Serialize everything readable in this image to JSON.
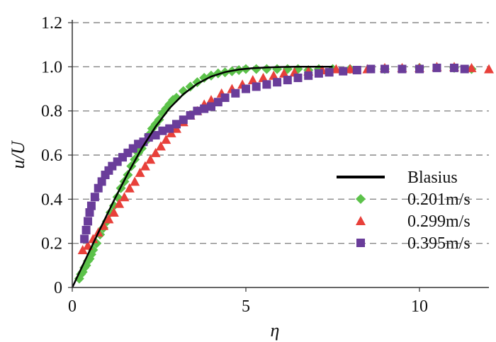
{
  "chart_data": {
    "type": "scatter",
    "xlabel": "η",
    "ylabel": "u/U",
    "xlim": [
      0,
      12
    ],
    "ylim": [
      0,
      1.2
    ],
    "xticks": [
      "0",
      "5",
      "10"
    ],
    "yticks": [
      "0",
      "0.2",
      "0.4",
      "0.6",
      "0.8",
      "1.0",
      "1.2"
    ],
    "grid": "horizontal dashed",
    "legend_position": "lower-right",
    "series": [
      {
        "name": "Blasius",
        "kind": "line",
        "color": "#000000",
        "points": [
          [
            0,
            0
          ],
          [
            0.4,
            0.133
          ],
          [
            0.8,
            0.265
          ],
          [
            1.2,
            0.394
          ],
          [
            1.6,
            0.517
          ],
          [
            2.0,
            0.63
          ],
          [
            2.4,
            0.729
          ],
          [
            2.8,
            0.812
          ],
          [
            3.2,
            0.876
          ],
          [
            3.6,
            0.923
          ],
          [
            4.0,
            0.956
          ],
          [
            4.4,
            0.976
          ],
          [
            4.8,
            0.988
          ],
          [
            5.2,
            0.994
          ],
          [
            5.6,
            0.997
          ],
          [
            6.0,
            0.999
          ],
          [
            6.5,
            1.0
          ],
          [
            7.5,
            1.0
          ]
        ]
      },
      {
        "name": "0.201m/s",
        "kind": "marker",
        "marker": "diamond",
        "color": "#5cc24a",
        "points": [
          [
            0.2,
            0.04
          ],
          [
            0.25,
            0.06
          ],
          [
            0.3,
            0.07
          ],
          [
            0.35,
            0.09
          ],
          [
            0.4,
            0.1
          ],
          [
            0.45,
            0.12
          ],
          [
            0.5,
            0.13
          ],
          [
            0.55,
            0.15
          ],
          [
            0.6,
            0.17
          ],
          [
            0.7,
            0.2
          ],
          [
            0.8,
            0.24
          ],
          [
            0.9,
            0.27
          ],
          [
            1.0,
            0.3
          ],
          [
            1.1,
            0.34
          ],
          [
            1.2,
            0.37
          ],
          [
            1.3,
            0.41
          ],
          [
            1.4,
            0.45
          ],
          [
            1.5,
            0.48
          ],
          [
            1.6,
            0.51
          ],
          [
            1.7,
            0.55
          ],
          [
            1.8,
            0.58
          ],
          [
            1.9,
            0.61
          ],
          [
            2.0,
            0.63
          ],
          [
            2.1,
            0.66
          ],
          [
            2.2,
            0.69
          ],
          [
            2.3,
            0.72
          ],
          [
            2.4,
            0.74
          ],
          [
            2.5,
            0.76
          ],
          [
            2.6,
            0.79
          ],
          [
            2.7,
            0.81
          ],
          [
            2.8,
            0.83
          ],
          [
            2.9,
            0.85
          ],
          [
            3.0,
            0.86
          ],
          [
            3.2,
            0.89
          ],
          [
            3.4,
            0.91
          ],
          [
            3.6,
            0.93
          ],
          [
            3.8,
            0.95
          ],
          [
            4.0,
            0.96
          ],
          [
            4.2,
            0.97
          ],
          [
            4.4,
            0.975
          ],
          [
            4.6,
            0.98
          ],
          [
            4.8,
            0.985
          ],
          [
            5.0,
            0.99
          ],
          [
            5.3,
            0.99
          ],
          [
            5.6,
            0.99
          ],
          [
            5.9,
            0.99
          ],
          [
            6.2,
            0.99
          ],
          [
            6.5,
            0.99
          ],
          [
            6.8,
            0.985
          ],
          [
            7.1,
            0.99
          ],
          [
            7.5,
            0.99
          ],
          [
            8.0,
            0.99
          ],
          [
            9.0,
            0.99
          ],
          [
            10.0,
            0.995
          ],
          [
            11.0,
            0.995
          ],
          [
            11.5,
            0.99
          ]
        ]
      },
      {
        "name": "0.299m/s",
        "kind": "marker",
        "marker": "triangle",
        "color": "#e8403a",
        "points": [
          [
            0.3,
            0.17
          ],
          [
            0.45,
            0.19
          ],
          [
            0.6,
            0.22
          ],
          [
            0.75,
            0.25
          ],
          [
            0.9,
            0.28
          ],
          [
            1.05,
            0.31
          ],
          [
            1.2,
            0.34
          ],
          [
            1.35,
            0.38
          ],
          [
            1.5,
            0.41
          ],
          [
            1.65,
            0.45
          ],
          [
            1.8,
            0.48
          ],
          [
            1.95,
            0.52
          ],
          [
            2.1,
            0.55
          ],
          [
            2.25,
            0.58
          ],
          [
            2.4,
            0.61
          ],
          [
            2.55,
            0.64
          ],
          [
            2.7,
            0.67
          ],
          [
            2.85,
            0.7
          ],
          [
            3.0,
            0.72
          ],
          [
            3.2,
            0.75
          ],
          [
            3.4,
            0.78
          ],
          [
            3.6,
            0.8
          ],
          [
            3.8,
            0.83
          ],
          [
            4.0,
            0.85
          ],
          [
            4.3,
            0.88
          ],
          [
            4.6,
            0.9
          ],
          [
            4.9,
            0.92
          ],
          [
            5.2,
            0.94
          ],
          [
            5.5,
            0.95
          ],
          [
            5.8,
            0.96
          ],
          [
            6.1,
            0.97
          ],
          [
            6.4,
            0.975
          ],
          [
            6.8,
            0.98
          ],
          [
            7.2,
            0.985
          ],
          [
            7.6,
            0.99
          ],
          [
            8.0,
            0.99
          ],
          [
            8.5,
            0.99
          ],
          [
            9.0,
            0.995
          ],
          [
            9.5,
            0.995
          ],
          [
            10.0,
            0.995
          ],
          [
            10.5,
            1.0
          ],
          [
            11.0,
            1.0
          ],
          [
            11.5,
            0.995
          ],
          [
            12.0,
            0.99
          ]
        ]
      },
      {
        "name": "0.395m/s",
        "kind": "marker",
        "marker": "square",
        "color": "#6a3d9a",
        "points": [
          [
            0.35,
            0.22
          ],
          [
            0.4,
            0.26
          ],
          [
            0.45,
            0.3
          ],
          [
            0.5,
            0.34
          ],
          [
            0.55,
            0.37
          ],
          [
            0.65,
            0.41
          ],
          [
            0.75,
            0.45
          ],
          [
            0.85,
            0.48
          ],
          [
            0.95,
            0.51
          ],
          [
            1.05,
            0.53
          ],
          [
            1.15,
            0.55
          ],
          [
            1.3,
            0.57
          ],
          [
            1.45,
            0.59
          ],
          [
            1.6,
            0.61
          ],
          [
            1.75,
            0.63
          ],
          [
            1.9,
            0.65
          ],
          [
            2.05,
            0.66
          ],
          [
            2.2,
            0.68
          ],
          [
            2.4,
            0.69
          ],
          [
            2.6,
            0.71
          ],
          [
            2.8,
            0.72
          ],
          [
            3.0,
            0.74
          ],
          [
            3.2,
            0.76
          ],
          [
            3.4,
            0.78
          ],
          [
            3.6,
            0.8
          ],
          [
            3.8,
            0.81
          ],
          [
            4.0,
            0.82
          ],
          [
            4.2,
            0.84
          ],
          [
            4.4,
            0.86
          ],
          [
            4.7,
            0.88
          ],
          [
            5.0,
            0.9
          ],
          [
            5.3,
            0.91
          ],
          [
            5.6,
            0.92
          ],
          [
            5.9,
            0.93
          ],
          [
            6.2,
            0.94
          ],
          [
            6.5,
            0.95
          ],
          [
            6.8,
            0.96
          ],
          [
            7.1,
            0.97
          ],
          [
            7.4,
            0.975
          ],
          [
            7.8,
            0.98
          ],
          [
            8.2,
            0.985
          ],
          [
            8.6,
            0.99
          ],
          [
            9.0,
            0.99
          ],
          [
            9.5,
            0.99
          ],
          [
            10.0,
            0.99
          ],
          [
            10.5,
            0.995
          ],
          [
            11.0,
            0.995
          ],
          [
            11.3,
            0.99
          ]
        ]
      }
    ]
  }
}
